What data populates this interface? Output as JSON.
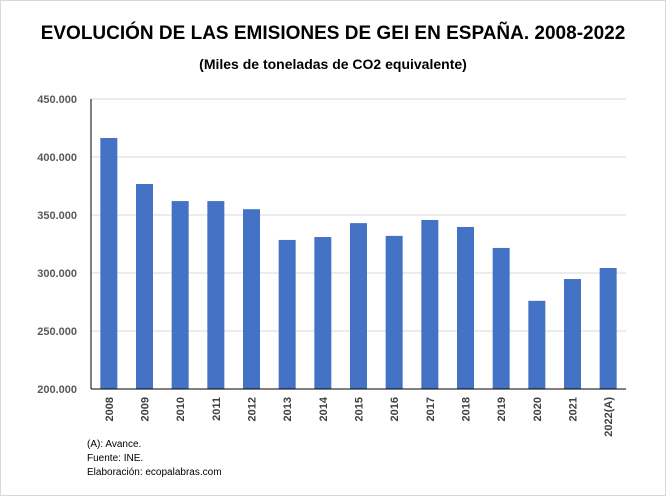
{
  "chart_data": {
    "type": "bar",
    "title": "EVOLUCIÓN DE LAS EMISIONES DE GEI EN ESPAÑA. 2008-2022",
    "subtitle": "(Miles de toneladas de CO2 equivalente)",
    "xlabel": "",
    "ylabel": "",
    "ylim": [
      200000,
      450000
    ],
    "yticks": [
      200000,
      250000,
      300000,
      350000,
      400000,
      450000
    ],
    "ytick_labels": [
      "200.000",
      "250.000",
      "300.000",
      "350.000",
      "400.000",
      "450.000"
    ],
    "grid": true,
    "categories": [
      "2008",
      "2009",
      "2010",
      "2011",
      "2012",
      "2013",
      "2014",
      "2015",
      "2016",
      "2017",
      "2018",
      "2019",
      "2020",
      "2021",
      "2022(A)"
    ],
    "values": [
      416400,
      376700,
      362000,
      362000,
      355000,
      328500,
      331000,
      343000,
      332000,
      345700,
      339700,
      321600,
      276000,
      294800,
      304300
    ],
    "bar_color": "#4472C4",
    "notes": [
      "(A): Avance.",
      "Fuente: INE.",
      "Elaboración: ecopalabras.com"
    ]
  }
}
